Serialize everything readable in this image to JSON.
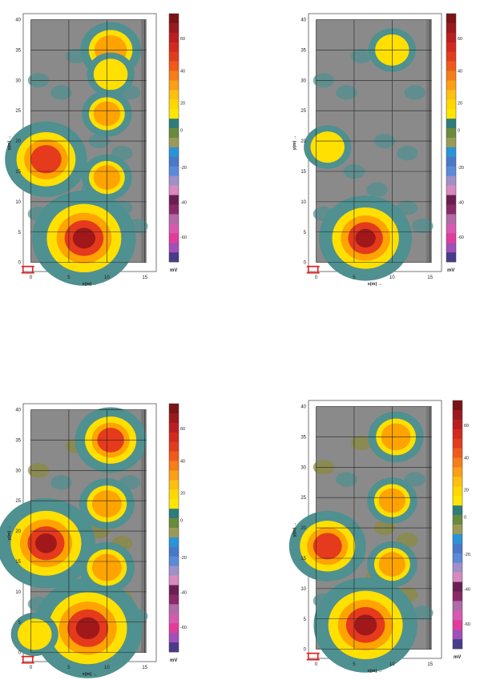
{
  "palette": {
    "background_field": "#8a8a8a",
    "edge_teal": "#4f9090",
    "olive_noise": "#8a8a3a",
    "yellow": "#ffe000",
    "orange": "#ffa300",
    "red": "#e53a1c",
    "darkred": "#a0181a",
    "grid": "#222222",
    "scale_icon": "#e02020"
  },
  "colorbar": {
    "colors": [
      "#7a1417",
      "#9a1a20",
      "#b81e22",
      "#d22a20",
      "#e23c1e",
      "#ef5a1c",
      "#f57d1a",
      "#fa9f16",
      "#fdbf10",
      "#ffd800",
      "#ffe600",
      "#2e7d7a",
      "#6a8a3c",
      "#9a9a58",
      "#2a94d8",
      "#4a78c8",
      "#5a8ad8",
      "#a090c8",
      "#d88ac0",
      "#6a1f52",
      "#8a2a66",
      "#b06aa8",
      "#d65ab2",
      "#e23c9a",
      "#a050b8",
      "#4a3a8a"
    ],
    "ticks_top": [
      "60",
      "40",
      "20",
      "0",
      "-20",
      "-40",
      "-60"
    ],
    "unit": "mV"
  },
  "chart_data": [
    {
      "type": "heatmap",
      "panel": "top-left",
      "xlabel": "x(m) →",
      "ylabel": "y(m) →",
      "xticks": [
        "0",
        "5",
        "10",
        "15"
      ],
      "yticks": [
        "0",
        "5",
        "10",
        "15",
        "20",
        "25",
        "30",
        "35",
        "40"
      ],
      "xlim": [
        -1,
        16.5
      ],
      "ylim": [
        -1.5,
        41
      ],
      "colorbar_ticks": [
        "60",
        "40",
        "20",
        "0",
        "-20",
        "-40",
        "-60"
      ],
      "colorbar_unit": "mV",
      "anomalies": [
        {
          "x": 7,
          "y": 4,
          "peak_mV": 65
        },
        {
          "x": 2,
          "y": 17,
          "peak_mV": 45
        },
        {
          "x": 10.5,
          "y": 35,
          "peak_mV": 25
        },
        {
          "x": 10,
          "y": 24.5,
          "peak_mV": 15
        },
        {
          "x": 10,
          "y": 14,
          "peak_mV": 15
        },
        {
          "x": 10.5,
          "y": 31,
          "peak_mV": 10
        }
      ]
    },
    {
      "type": "heatmap",
      "panel": "top-right",
      "xlabel": "x(m) →",
      "ylabel": "y(m) →",
      "xticks": [
        "0",
        "5",
        "10",
        "15"
      ],
      "yticks": [
        "0",
        "5",
        "10",
        "15",
        "20",
        "25",
        "30",
        "35",
        "40"
      ],
      "xlim": [
        -1,
        16.5
      ],
      "ylim": [
        -1.5,
        41
      ],
      "colorbar_ticks": [
        "60",
        "40",
        "20",
        "0",
        "-20",
        "-40",
        "-60"
      ],
      "colorbar_unit": "mV",
      "anomalies": [
        {
          "x": 6.5,
          "y": 4,
          "peak_mV": 55
        },
        {
          "x": 1.5,
          "y": 19,
          "peak_mV": 10
        },
        {
          "x": 10,
          "y": 35,
          "peak_mV": 5
        }
      ]
    },
    {
      "type": "heatmap",
      "panel": "bottom-left",
      "xlabel": "x(m) →",
      "ylabel": "y(m) →",
      "xticks": [
        "0",
        "5",
        "10",
        "15"
      ],
      "yticks": [
        "0",
        "5",
        "10",
        "15",
        "20",
        "25",
        "30",
        "35",
        "40"
      ],
      "xlim": [
        -1,
        16.5
      ],
      "ylim": [
        -1.5,
        41
      ],
      "colorbar_ticks": [
        "60",
        "40",
        "20",
        "0",
        "-20",
        "-40",
        "-60"
      ],
      "colorbar_unit": "mV",
      "anomalies": [
        {
          "x": 7.5,
          "y": 4,
          "peak_mV": 70
        },
        {
          "x": 2,
          "y": 18,
          "peak_mV": 60
        },
        {
          "x": 10.5,
          "y": 35,
          "peak_mV": 35
        },
        {
          "x": 10,
          "y": 24.5,
          "peak_mV": 20
        },
        {
          "x": 10,
          "y": 14,
          "peak_mV": 20
        },
        {
          "x": 0.5,
          "y": 3,
          "peak_mV": 10
        }
      ]
    },
    {
      "type": "heatmap",
      "panel": "bottom-right",
      "xlabel": "x(m) →",
      "ylabel": "y(m) →",
      "xticks": [
        "0",
        "5",
        "10",
        "15"
      ],
      "yticks": [
        "0",
        "5",
        "10",
        "15",
        "20",
        "25",
        "30",
        "35",
        "40"
      ],
      "xlim": [
        -1,
        16.5
      ],
      "ylim": [
        -1.5,
        41
      ],
      "colorbar_ticks": [
        "60",
        "40",
        "20",
        "0",
        "-20",
        "-40",
        "-60"
      ],
      "colorbar_unit": "mV",
      "anomalies": [
        {
          "x": 6.5,
          "y": 4,
          "peak_mV": 65
        },
        {
          "x": 1.5,
          "y": 17,
          "peak_mV": 40
        },
        {
          "x": 10.5,
          "y": 35,
          "peak_mV": 20
        },
        {
          "x": 10,
          "y": 24.5,
          "peak_mV": 15
        },
        {
          "x": 10,
          "y": 14,
          "peak_mV": 15
        }
      ]
    }
  ]
}
